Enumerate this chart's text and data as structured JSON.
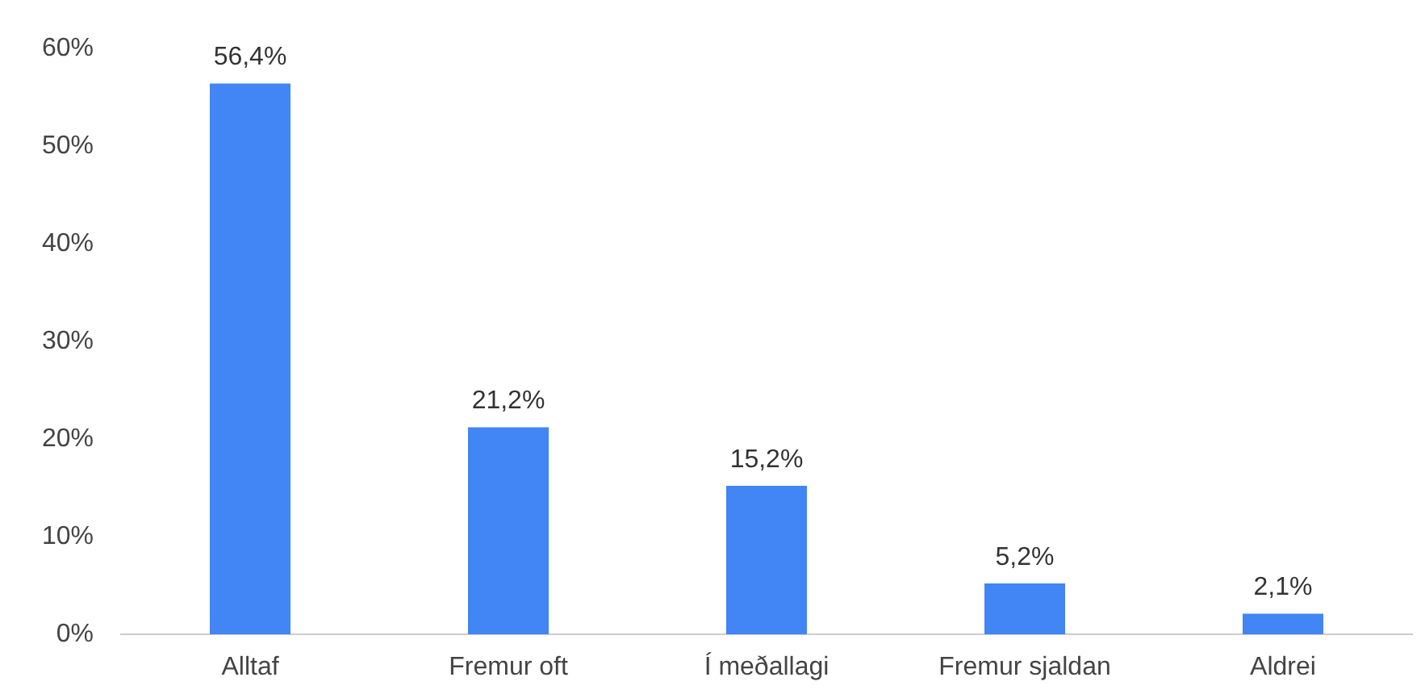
{
  "chart_data": {
    "type": "bar",
    "categories": [
      "Alltaf",
      "Fremur oft",
      "Í meðallagi",
      "Fremur sjaldan",
      "Aldrei"
    ],
    "values": [
      56.4,
      21.2,
      15.2,
      5.2,
      2.1
    ],
    "value_labels": [
      "56,4%",
      "21,2%",
      "15,2%",
      "5,2%",
      "2,1%"
    ],
    "color": "#4285f4",
    "ylim": [
      0,
      60
    ],
    "yticks": [
      {
        "value": 0,
        "label": "0%"
      },
      {
        "value": 10,
        "label": "10%"
      },
      {
        "value": 20,
        "label": "20%"
      },
      {
        "value": 30,
        "label": "30%"
      },
      {
        "value": 40,
        "label": "40%"
      },
      {
        "value": 50,
        "label": "50%"
      },
      {
        "value": 60,
        "label": "60%"
      }
    ]
  }
}
